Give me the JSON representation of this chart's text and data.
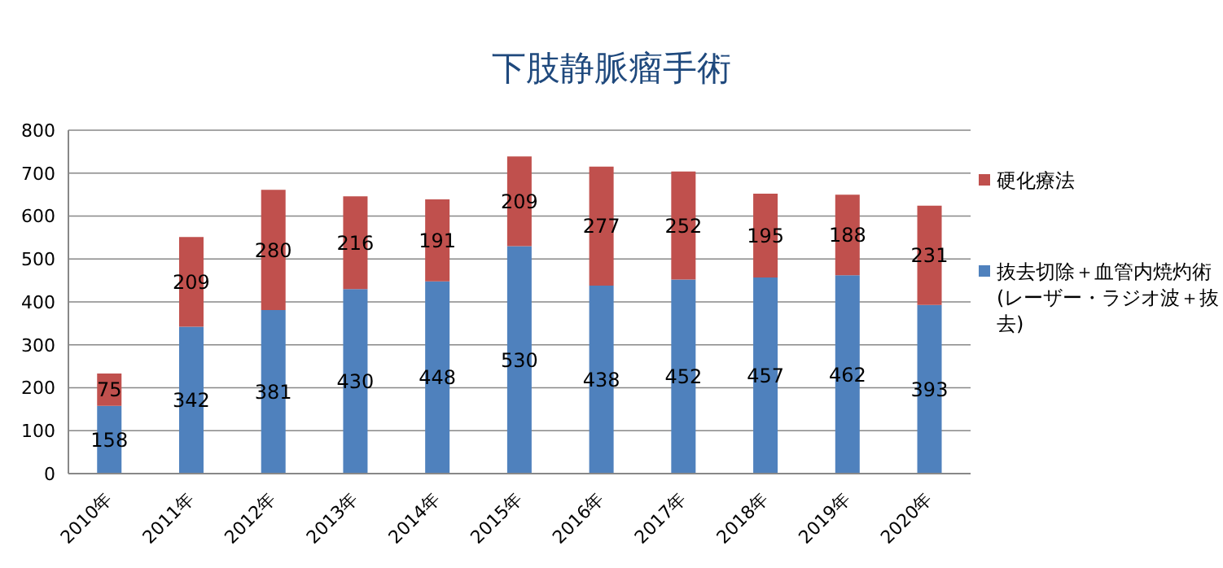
{
  "chart_data": {
    "type": "bar",
    "title": "下肢静脈瘤手術",
    "stacked": true,
    "categories": [
      "2010年",
      "2011年",
      "2012年",
      "2013年",
      "2014年",
      "2015年",
      "2016年",
      "2017年",
      "2018年",
      "2019年",
      "2020年"
    ],
    "series": [
      {
        "name": "抜去切除＋血管内焼灼術(レーザー・ラジオ波＋抜去)",
        "color": "#4f81bd",
        "values": [
          158,
          342,
          381,
          430,
          448,
          530,
          438,
          452,
          457,
          462,
          393
        ]
      },
      {
        "name": "硬化療法",
        "color": "#c0504d",
        "values": [
          75,
          209,
          280,
          216,
          191,
          209,
          277,
          252,
          195,
          188,
          231
        ]
      }
    ],
    "ylim": [
      0,
      800
    ],
    "yticks": [
      0,
      100,
      200,
      300,
      400,
      500,
      600,
      700,
      800
    ],
    "grid": "y",
    "legend": "right",
    "data_labels": true
  }
}
